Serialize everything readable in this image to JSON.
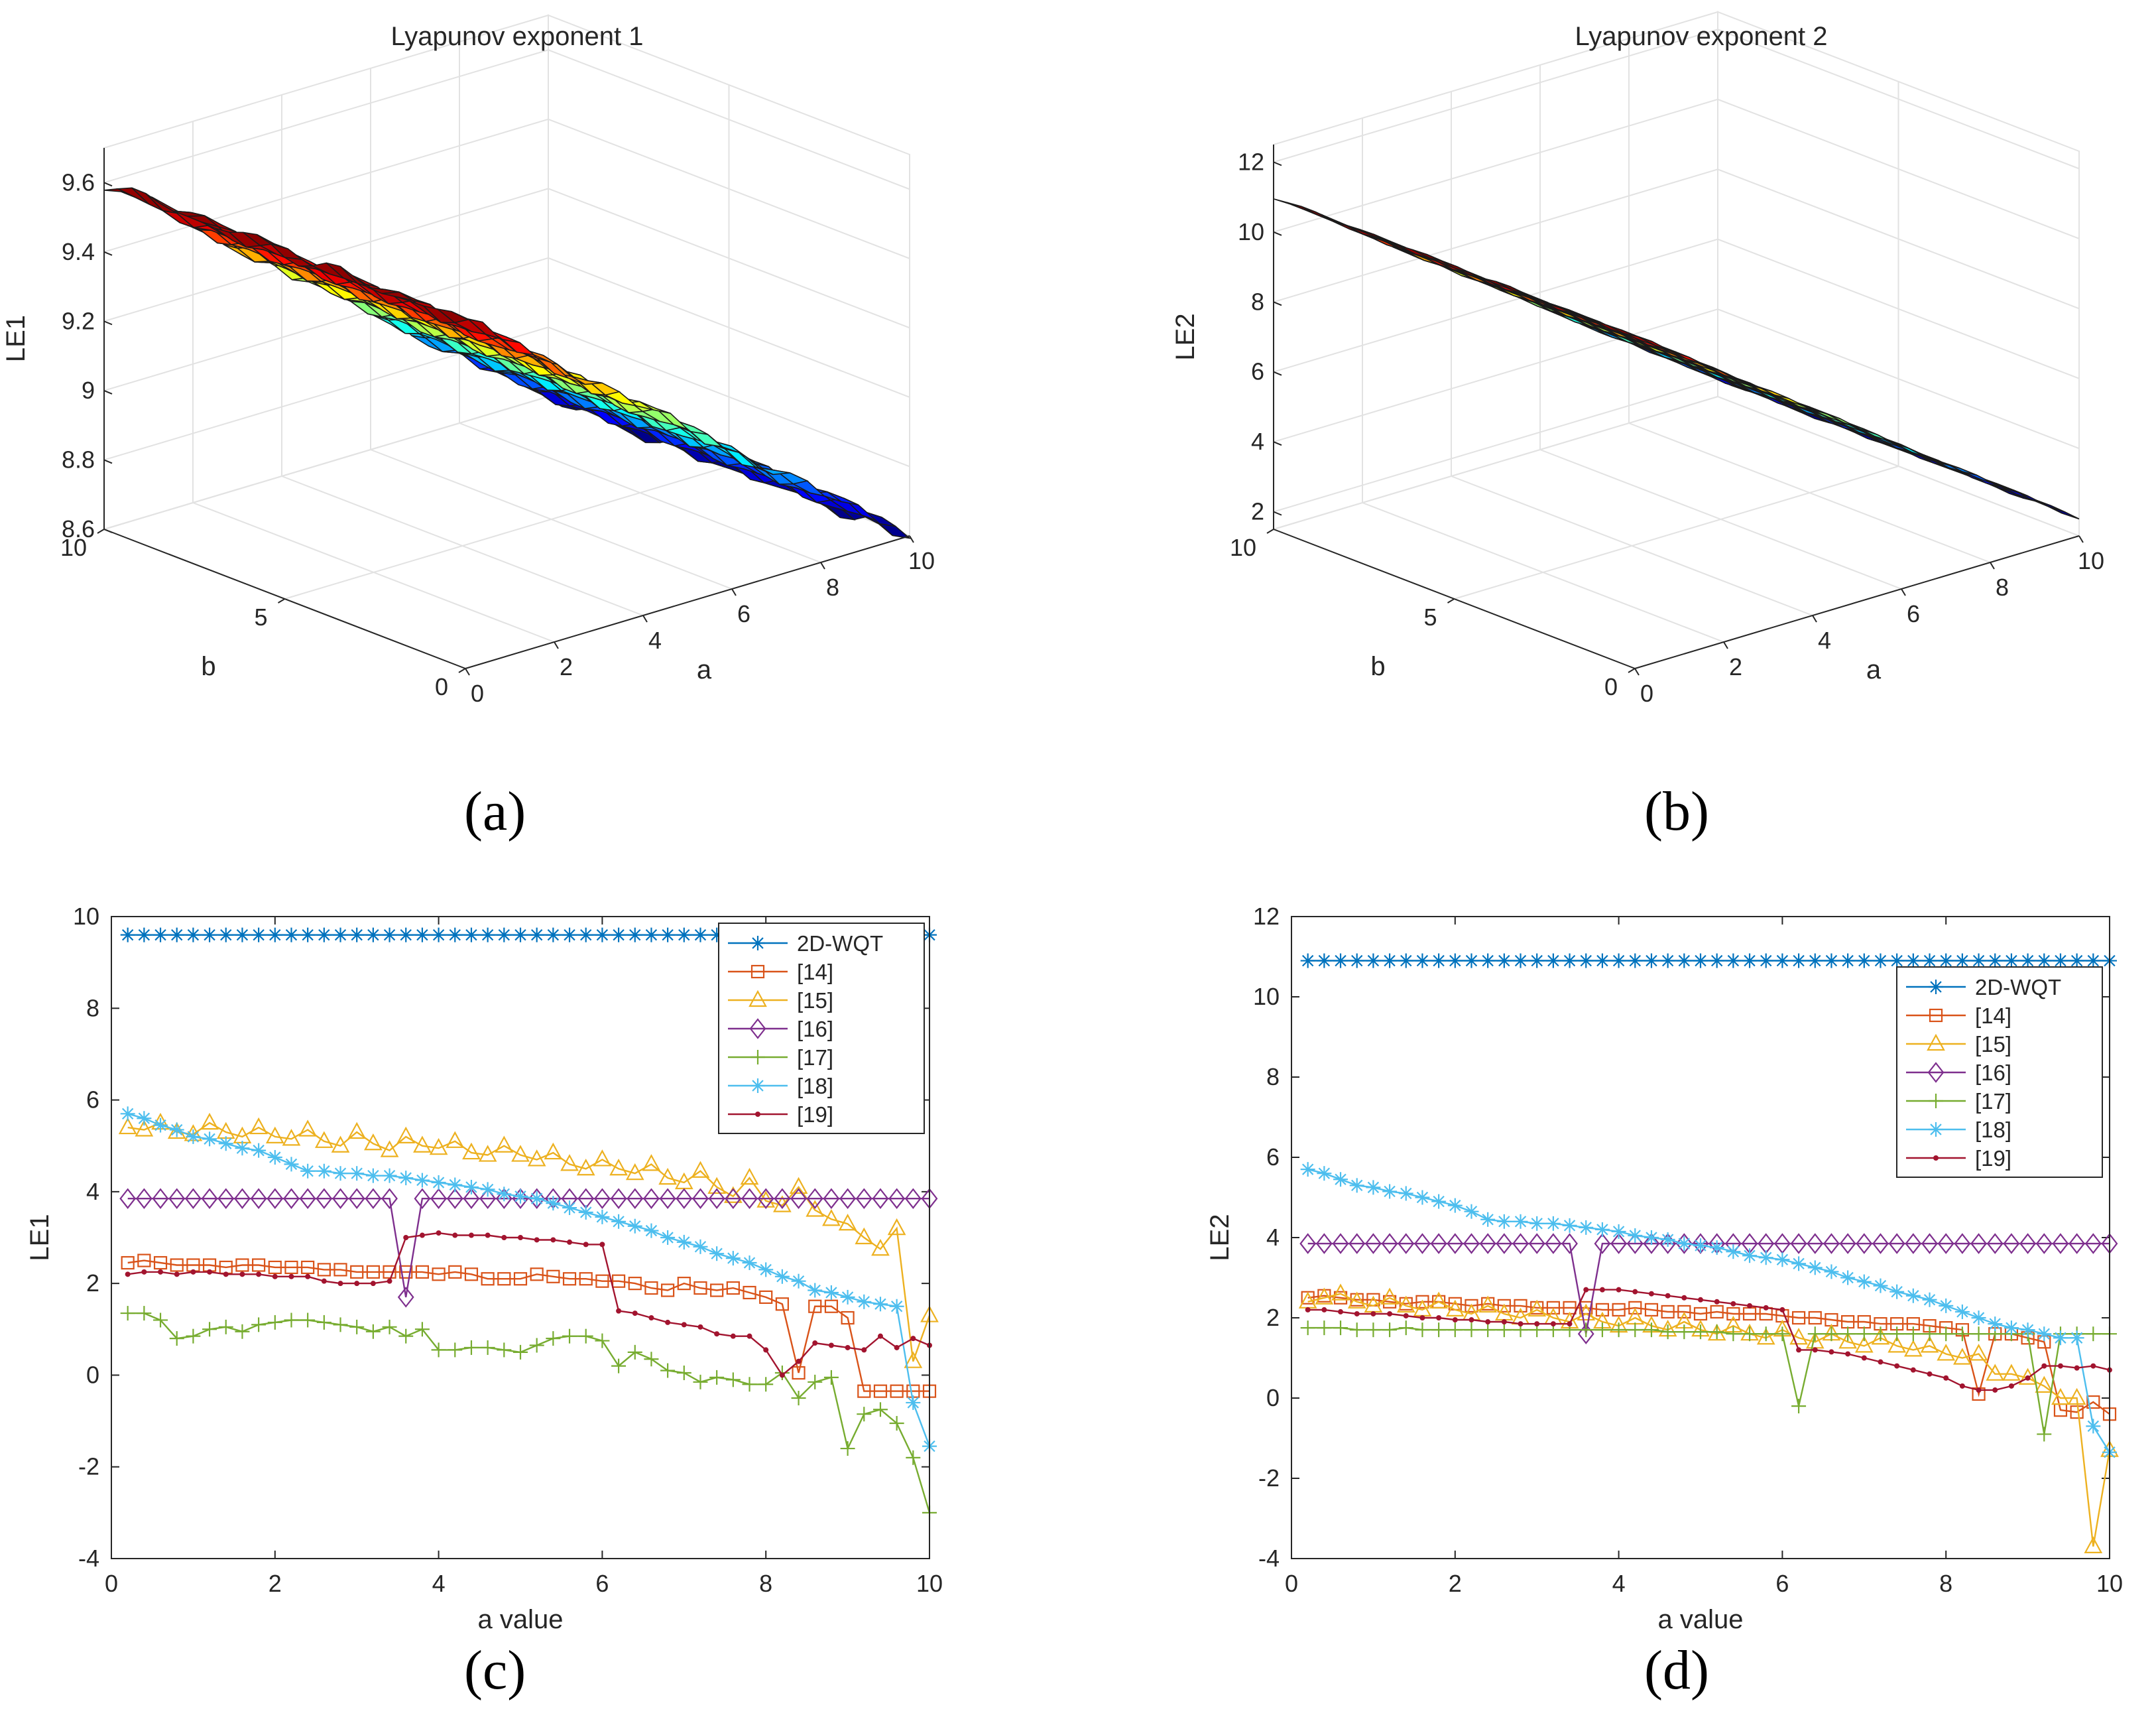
{
  "panel_labels": {
    "a": "(a)",
    "b": "(b)",
    "c": "(c)",
    "d": "(d)"
  },
  "colors": {
    "2D-WQT": "#0072BD",
    "[14]": "#D95319",
    "[15]": "#EDB120",
    "[16]": "#7E2F8E",
    "[17]": "#77AC30",
    "[18]": "#4DBEEE",
    "[19]": "#A2142F",
    "frame": "#262626"
  },
  "chart_data": [
    {
      "type": "surface",
      "panel": "a",
      "title": "Lyapunov exponent 1",
      "xlabel": "a",
      "ylabel": "b",
      "zlabel": "LE1",
      "xticks": [
        "0",
        "2",
        "4",
        "6",
        "8",
        "10"
      ],
      "yticks": [
        "0",
        "5",
        "10"
      ],
      "zticks": [
        "8.6",
        "8.8",
        "9",
        "9.2",
        "9.4",
        "9.6"
      ],
      "xlim": [
        0,
        10
      ],
      "ylim": [
        0,
        10
      ],
      "zlim": [
        8.6,
        9.7
      ],
      "description_values": {
        "z_at_a0": 9.6,
        "z_at_a10": 8.6,
        "trend": "decreasing in a, nearly constant in b"
      },
      "colormap": "jet"
    },
    {
      "type": "surface",
      "panel": "b",
      "title": "Lyapunov exponent 2",
      "xlabel": "a",
      "ylabel": "b",
      "zlabel": "LE2",
      "xticks": [
        "0",
        "2",
        "4",
        "6",
        "8",
        "10"
      ],
      "yticks": [
        "0",
        "5",
        "10"
      ],
      "zticks": [
        "2",
        "4",
        "6",
        "8",
        "10",
        "12"
      ],
      "xlim": [
        0,
        10
      ],
      "ylim": [
        0,
        10
      ],
      "zlim": [
        1.5,
        12.5
      ],
      "description_values": {
        "z_at_a0": 11,
        "z_at_a10": 2,
        "trend": "decreasing in a, nearly constant in b"
      },
      "colormap": "jet"
    },
    {
      "type": "line",
      "panel": "c",
      "xlabel": "a value",
      "ylabel": "LE1",
      "xlim": [
        0,
        10
      ],
      "ylim": [
        -4,
        10
      ],
      "xticks": [
        "0",
        "2",
        "4",
        "6",
        "8",
        "10"
      ],
      "yticks": [
        "-4",
        "-2",
        "0",
        "2",
        "4",
        "6",
        "8",
        "10"
      ],
      "legend_position": "top-right",
      "x": [
        0.2,
        0.4,
        0.6,
        0.8,
        1.0,
        1.2,
        1.4,
        1.6,
        1.8,
        2.0,
        2.2,
        2.4,
        2.6,
        2.8,
        3.0,
        3.2,
        3.4,
        3.6,
        3.8,
        4.0,
        4.2,
        4.4,
        4.6,
        4.8,
        5.0,
        5.2,
        5.4,
        5.6,
        5.8,
        6.0,
        6.2,
        6.4,
        6.6,
        6.8,
        7.0,
        7.2,
        7.4,
        7.6,
        7.8,
        8.0,
        8.2,
        8.4,
        8.6,
        8.8,
        9.0,
        9.2,
        9.4,
        9.6,
        9.8,
        10.0
      ],
      "series": [
        {
          "name": "2D-WQT",
          "marker": "asterisk",
          "values": [
            9.6,
            9.6,
            9.6,
            9.6,
            9.6,
            9.6,
            9.6,
            9.6,
            9.6,
            9.6,
            9.6,
            9.6,
            9.6,
            9.6,
            9.6,
            9.6,
            9.6,
            9.6,
            9.6,
            9.6,
            9.6,
            9.6,
            9.6,
            9.6,
            9.6,
            9.6,
            9.6,
            9.6,
            9.6,
            9.6,
            9.6,
            9.6,
            9.6,
            9.6,
            9.6,
            9.6,
            9.6,
            9.6,
            9.6,
            9.6,
            9.6,
            9.6,
            9.6,
            9.6,
            9.6,
            9.6,
            9.6,
            9.6,
            9.6,
            9.6
          ]
        },
        {
          "name": "[14]",
          "marker": "square",
          "values": [
            2.45,
            2.5,
            2.45,
            2.4,
            2.4,
            2.4,
            2.35,
            2.4,
            2.4,
            2.35,
            2.35,
            2.35,
            2.3,
            2.3,
            2.25,
            2.25,
            2.25,
            2.25,
            2.25,
            2.2,
            2.25,
            2.2,
            2.1,
            2.1,
            2.1,
            2.2,
            2.15,
            2.1,
            2.1,
            2.05,
            2.05,
            2.0,
            1.9,
            1.85,
            2.0,
            1.9,
            1.85,
            1.9,
            1.8,
            1.7,
            1.55,
            0.05,
            1.5,
            1.5,
            1.25,
            -0.35,
            -0.35,
            -0.35,
            -0.35,
            -0.35
          ]
        },
        {
          "name": "[15]",
          "marker": "triangle",
          "values": [
            5.4,
            5.35,
            5.5,
            5.3,
            5.25,
            5.5,
            5.3,
            5.2,
            5.4,
            5.2,
            5.15,
            5.35,
            5.1,
            5.0,
            5.3,
            5.05,
            4.9,
            5.2,
            5.0,
            4.95,
            5.1,
            4.85,
            4.8,
            5.0,
            4.8,
            4.7,
            4.85,
            4.6,
            4.5,
            4.7,
            4.5,
            4.4,
            4.6,
            4.3,
            4.2,
            4.45,
            4.1,
            3.9,
            4.3,
            3.8,
            3.7,
            4.1,
            3.6,
            3.4,
            3.3,
            3.0,
            2.75,
            3.2,
            0.3,
            1.3
          ]
        },
        {
          "name": "[16]",
          "marker": "diamond",
          "values": [
            3.85,
            3.85,
            3.85,
            3.85,
            3.85,
            3.85,
            3.85,
            3.85,
            3.85,
            3.85,
            3.85,
            3.85,
            3.85,
            3.85,
            3.85,
            3.85,
            3.85,
            1.7,
            3.85,
            3.85,
            3.85,
            3.85,
            3.85,
            3.85,
            3.85,
            3.85,
            3.85,
            3.85,
            3.85,
            3.85,
            3.85,
            3.85,
            3.85,
            3.85,
            3.85,
            3.85,
            3.85,
            3.85,
            3.85,
            3.85,
            3.85,
            3.85,
            3.85,
            3.85,
            3.85,
            3.85,
            3.85,
            3.85,
            3.85,
            3.85
          ]
        },
        {
          "name": "[17]",
          "marker": "plus",
          "values": [
            1.35,
            1.35,
            1.2,
            0.8,
            0.85,
            1.0,
            1.05,
            0.95,
            1.1,
            1.15,
            1.2,
            1.2,
            1.15,
            1.1,
            1.05,
            0.95,
            1.05,
            0.85,
            1.0,
            0.55,
            0.55,
            0.6,
            0.6,
            0.55,
            0.5,
            0.65,
            0.8,
            0.85,
            0.85,
            0.75,
            0.2,
            0.5,
            0.35,
            0.1,
            0.05,
            -0.15,
            -0.05,
            -0.1,
            -0.2,
            -0.2,
            0.05,
            -0.5,
            -0.15,
            -0.05,
            -1.6,
            -0.85,
            -0.75,
            -1.05,
            -1.8,
            -3.0
          ]
        },
        {
          "name": "[18]",
          "marker": "asterisk",
          "values": [
            5.7,
            5.6,
            5.45,
            5.35,
            5.2,
            5.15,
            5.05,
            4.95,
            4.9,
            4.75,
            4.6,
            4.45,
            4.45,
            4.4,
            4.4,
            4.35,
            4.35,
            4.3,
            4.25,
            4.2,
            4.15,
            4.1,
            4.05,
            3.95,
            3.9,
            3.85,
            3.75,
            3.65,
            3.55,
            3.45,
            3.35,
            3.25,
            3.15,
            3.0,
            2.9,
            2.8,
            2.65,
            2.55,
            2.45,
            2.3,
            2.15,
            2.05,
            1.85,
            1.8,
            1.7,
            1.6,
            1.55,
            1.5,
            -0.6,
            -1.55
          ]
        },
        {
          "name": "[19]",
          "marker": "dot",
          "values": [
            2.2,
            2.25,
            2.25,
            2.2,
            2.25,
            2.25,
            2.2,
            2.2,
            2.2,
            2.15,
            2.15,
            2.15,
            2.05,
            2.0,
            2.0,
            2.0,
            2.05,
            3.0,
            3.05,
            3.1,
            3.05,
            3.05,
            3.05,
            3.0,
            3.0,
            2.95,
            2.95,
            2.9,
            2.85,
            2.85,
            1.4,
            1.35,
            1.25,
            1.15,
            1.1,
            1.05,
            0.9,
            0.85,
            0.85,
            0.55,
            0.0,
            0.3,
            0.7,
            0.65,
            0.6,
            0.55,
            0.85,
            0.6,
            0.8,
            0.65
          ]
        }
      ]
    },
    {
      "type": "line",
      "panel": "d",
      "xlabel": "a value",
      "ylabel": "LE2",
      "xlim": [
        0,
        10
      ],
      "ylim": [
        -4,
        12
      ],
      "xticks": [
        "0",
        "2",
        "4",
        "6",
        "8",
        "10"
      ],
      "yticks": [
        "-4",
        "-2",
        "0",
        "2",
        "4",
        "6",
        "8",
        "10",
        "12"
      ],
      "legend_position": "top-right",
      "x": [
        0.2,
        0.4,
        0.6,
        0.8,
        1.0,
        1.2,
        1.4,
        1.6,
        1.8,
        2.0,
        2.2,
        2.4,
        2.6,
        2.8,
        3.0,
        3.2,
        3.4,
        3.6,
        3.8,
        4.0,
        4.2,
        4.4,
        4.6,
        4.8,
        5.0,
        5.2,
        5.4,
        5.6,
        5.8,
        6.0,
        6.2,
        6.4,
        6.6,
        6.8,
        7.0,
        7.2,
        7.4,
        7.6,
        7.8,
        8.0,
        8.2,
        8.4,
        8.6,
        8.8,
        9.0,
        9.2,
        9.4,
        9.6,
        9.8,
        10.0
      ],
      "series": [
        {
          "name": "2D-WQT",
          "marker": "asterisk",
          "values": [
            10.9,
            10.9,
            10.9,
            10.9,
            10.9,
            10.9,
            10.9,
            10.9,
            10.9,
            10.9,
            10.9,
            10.9,
            10.9,
            10.9,
            10.9,
            10.9,
            10.9,
            10.9,
            10.9,
            10.9,
            10.9,
            10.9,
            10.9,
            10.9,
            10.9,
            10.9,
            10.9,
            10.9,
            10.9,
            10.9,
            10.9,
            10.9,
            10.9,
            10.9,
            10.9,
            10.9,
            10.9,
            10.9,
            10.9,
            10.9,
            10.9,
            10.9,
            10.9,
            10.9,
            10.9,
            10.9,
            10.9,
            10.9,
            10.9,
            10.9
          ]
        },
        {
          "name": "[14]",
          "marker": "square",
          "values": [
            2.5,
            2.55,
            2.5,
            2.45,
            2.45,
            2.4,
            2.35,
            2.4,
            2.4,
            2.35,
            2.3,
            2.35,
            2.3,
            2.3,
            2.25,
            2.25,
            2.25,
            2.25,
            2.2,
            2.2,
            2.25,
            2.2,
            2.15,
            2.15,
            2.1,
            2.15,
            2.1,
            2.1,
            2.1,
            2.05,
            2.0,
            2.0,
            1.95,
            1.9,
            1.9,
            1.85,
            1.85,
            1.85,
            1.8,
            1.75,
            1.7,
            0.1,
            1.6,
            1.6,
            1.5,
            1.4,
            -0.3,
            -0.35,
            -0.1,
            -0.4
          ]
        },
        {
          "name": "[15]",
          "marker": "triangle",
          "values": [
            2.4,
            2.5,
            2.6,
            2.4,
            2.3,
            2.5,
            2.3,
            2.2,
            2.4,
            2.2,
            2.1,
            2.3,
            2.1,
            2.0,
            2.2,
            2.0,
            1.9,
            2.1,
            1.9,
            1.8,
            2.0,
            1.8,
            1.7,
            1.9,
            1.7,
            1.6,
            1.8,
            1.6,
            1.5,
            1.7,
            1.5,
            1.4,
            1.6,
            1.4,
            1.3,
            1.5,
            1.3,
            1.2,
            1.3,
            1.1,
            1.0,
            1.1,
            0.6,
            0.6,
            0.5,
            0.3,
            0.0,
            0.0,
            -3.7,
            -1.3
          ]
        },
        {
          "name": "[16]",
          "marker": "diamond",
          "values": [
            3.85,
            3.85,
            3.85,
            3.85,
            3.85,
            3.85,
            3.85,
            3.85,
            3.85,
            3.85,
            3.85,
            3.85,
            3.85,
            3.85,
            3.85,
            3.85,
            3.85,
            1.6,
            3.85,
            3.85,
            3.85,
            3.85,
            3.85,
            3.85,
            3.85,
            3.85,
            3.85,
            3.85,
            3.85,
            3.85,
            3.85,
            3.85,
            3.85,
            3.85,
            3.85,
            3.85,
            3.85,
            3.85,
            3.85,
            3.85,
            3.85,
            3.85,
            3.85,
            3.85,
            3.85,
            3.85,
            3.85,
            3.85,
            3.85,
            3.85
          ]
        },
        {
          "name": "[17]",
          "marker": "plus",
          "values": [
            1.75,
            1.75,
            1.75,
            1.7,
            1.7,
            1.7,
            1.75,
            1.7,
            1.7,
            1.7,
            1.7,
            1.7,
            1.7,
            1.7,
            1.7,
            1.7,
            1.7,
            1.7,
            1.7,
            1.7,
            1.7,
            1.7,
            1.65,
            1.65,
            1.65,
            1.65,
            1.6,
            1.6,
            1.6,
            1.6,
            -0.2,
            1.6,
            1.6,
            1.6,
            1.6,
            1.6,
            1.6,
            1.6,
            1.6,
            1.6,
            1.6,
            1.6,
            1.6,
            1.6,
            1.6,
            -0.9,
            1.6,
            1.6,
            1.6,
            1.6
          ]
        },
        {
          "name": "[18]",
          "marker": "asterisk",
          "values": [
            5.7,
            5.6,
            5.45,
            5.3,
            5.25,
            5.15,
            5.1,
            5.0,
            4.9,
            4.8,
            4.65,
            4.45,
            4.4,
            4.4,
            4.35,
            4.35,
            4.3,
            4.25,
            4.2,
            4.15,
            4.05,
            4.0,
            3.95,
            3.85,
            3.8,
            3.75,
            3.65,
            3.55,
            3.5,
            3.45,
            3.35,
            3.25,
            3.15,
            3.0,
            2.9,
            2.8,
            2.65,
            2.55,
            2.45,
            2.3,
            2.15,
            2.0,
            1.85,
            1.75,
            1.7,
            1.6,
            1.5,
            1.5,
            -0.7,
            -1.35
          ]
        },
        {
          "name": "[19]",
          "marker": "dot",
          "values": [
            2.2,
            2.2,
            2.15,
            2.1,
            2.1,
            2.1,
            2.05,
            2.0,
            2.0,
            1.95,
            1.95,
            1.9,
            1.9,
            1.85,
            1.85,
            1.85,
            1.85,
            2.7,
            2.7,
            2.7,
            2.65,
            2.6,
            2.55,
            2.5,
            2.45,
            2.4,
            2.35,
            2.3,
            2.25,
            2.2,
            1.2,
            1.2,
            1.15,
            1.1,
            1.0,
            0.9,
            0.8,
            0.7,
            0.6,
            0.5,
            0.3,
            0.2,
            0.2,
            0.3,
            0.5,
            0.8,
            0.8,
            0.75,
            0.8,
            0.7
          ]
        }
      ]
    }
  ]
}
